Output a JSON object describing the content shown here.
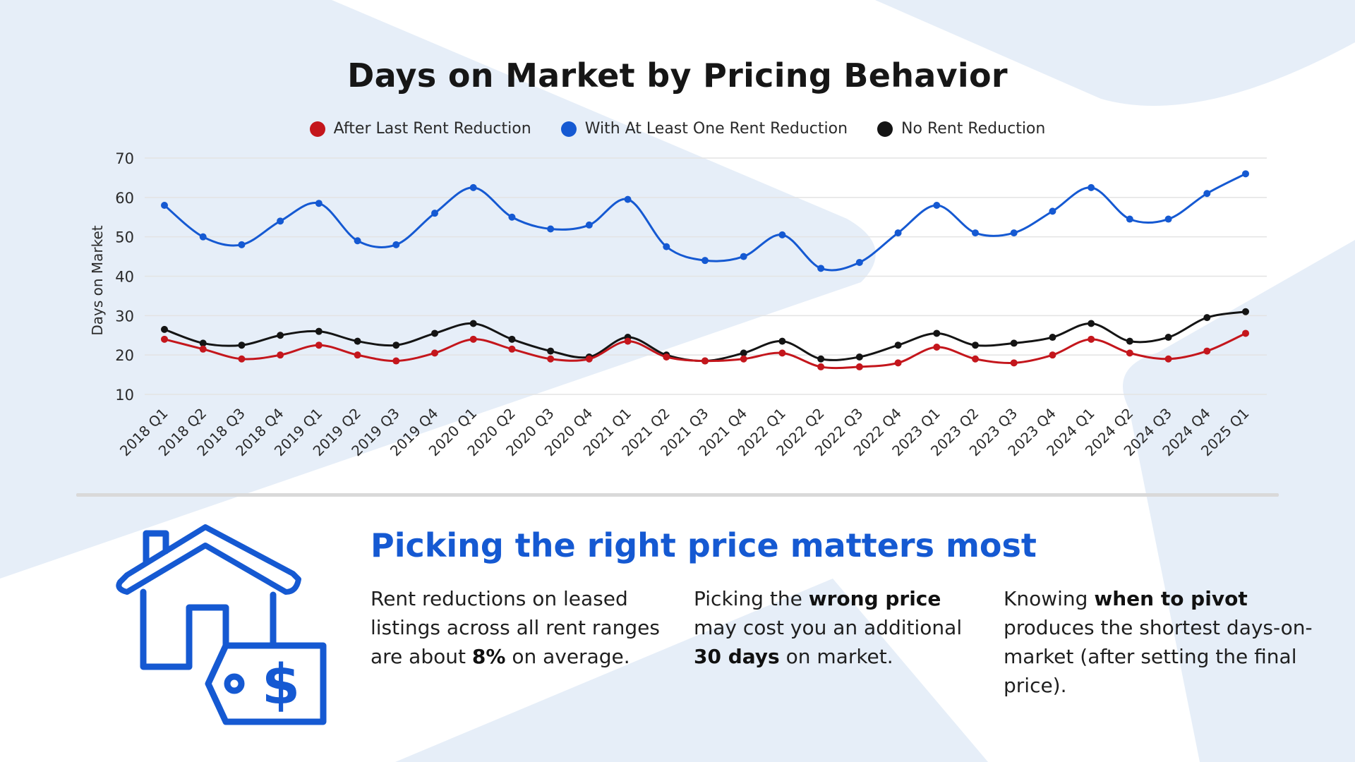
{
  "title": "Days on Market by Pricing Behavior",
  "colors": {
    "red": "#c4161c",
    "blue": "#1559d2",
    "black": "#141414",
    "bg_shape": "#e6eef8",
    "grid": "#e3e3e3"
  },
  "chart_data": {
    "type": "line",
    "title": "Days on Market by Pricing Behavior",
    "xlabel": "",
    "ylabel": "Days on Market",
    "ylim": [
      10,
      70
    ],
    "yticks": [
      10,
      20,
      30,
      40,
      50,
      60,
      70
    ],
    "grid": true,
    "legend_position": "top-center",
    "categories": [
      "2018 Q1",
      "2018 Q2",
      "2018 Q3",
      "2018 Q4",
      "2019 Q1",
      "2019 Q2",
      "2019 Q3",
      "2019 Q4",
      "2020 Q1",
      "2020 Q2",
      "2020 Q3",
      "2020 Q4",
      "2021 Q1",
      "2021 Q2",
      "2021 Q3",
      "2021 Q4",
      "2022 Q1",
      "2022 Q2",
      "2022 Q3",
      "2022 Q4",
      "2023 Q1",
      "2023 Q2",
      "2023 Q3",
      "2023 Q4",
      "2024 Q1",
      "2024 Q2",
      "2024 Q3",
      "2024 Q4",
      "2025 Q1"
    ],
    "series": [
      {
        "name": "After Last Rent Reduction",
        "color": "#c4161c",
        "values": [
          24,
          21.5,
          19,
          20,
          22.5,
          20,
          18.5,
          20.5,
          24,
          21.5,
          19,
          19,
          23.5,
          19.5,
          18.5,
          19,
          20.5,
          17,
          17,
          18,
          22,
          19,
          18,
          20,
          24,
          20.5,
          19,
          21,
          25.5
        ]
      },
      {
        "name": "With At Least One Rent Reduction",
        "color": "#1559d2",
        "values": [
          58,
          50,
          48,
          54,
          58.5,
          49,
          48,
          56,
          62.5,
          55,
          52,
          53,
          59.5,
          47.5,
          44,
          45,
          50.5,
          42,
          43.5,
          51,
          58,
          51,
          51,
          56.5,
          62.5,
          54.5,
          54.5,
          61,
          66
        ]
      },
      {
        "name": "No Rent Reduction",
        "color": "#141414",
        "values": [
          26.5,
          23,
          22.5,
          25,
          26,
          23.5,
          22.5,
          25.5,
          28,
          24,
          21,
          19.5,
          24.5,
          20,
          18.5,
          20.5,
          23.5,
          19,
          19.5,
          22.5,
          25.5,
          22.5,
          23,
          24.5,
          28,
          23.5,
          24.5,
          29.5,
          31
        ]
      }
    ]
  },
  "headline": "Picking the right price matters most",
  "col1": {
    "t1": "Rent reductions on leased listings across all rent ranges are about ",
    "b1": "8%",
    "t2": " on average."
  },
  "col2": {
    "t1": "Picking the ",
    "b1": "wrong price",
    "t2": " may cost you an additional ",
    "b2": "30 days",
    "t3": " on market."
  },
  "col3": {
    "t1": "Knowing ",
    "b1": "when to pivot",
    "t2": " produces the shortest days-on-market (after setting the final price)."
  }
}
